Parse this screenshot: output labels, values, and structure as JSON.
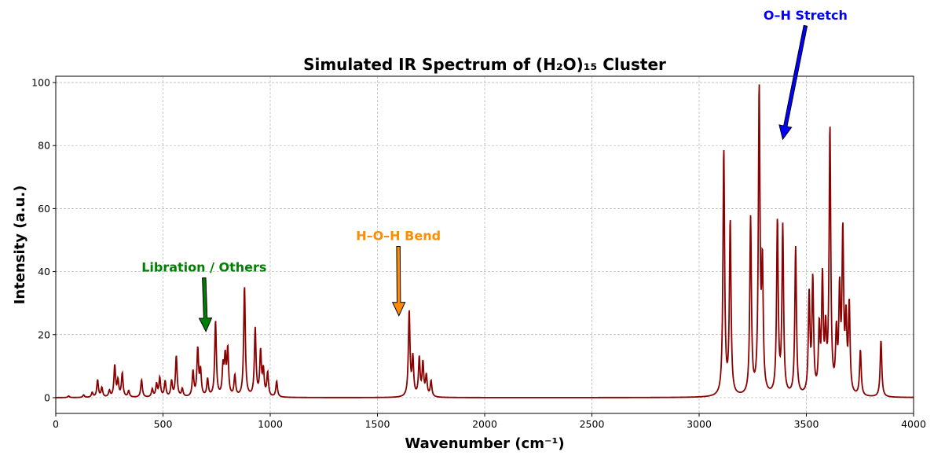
{
  "chart_data": {
    "type": "line",
    "title": "Simulated IR Spectrum of (H₂O)₁₅ Cluster",
    "xlabel": "Wavenumber (cm⁻¹)",
    "ylabel": "Intensity (a.u.)",
    "xlim": [
      0,
      4000
    ],
    "ylim": [
      -5,
      102
    ],
    "xticks": [
      0,
      500,
      1000,
      1500,
      2000,
      2500,
      3000,
      3500,
      4000
    ],
    "yticks": [
      0,
      20,
      40,
      60,
      80,
      100
    ],
    "grid": true,
    "line_color": "#8b0000",
    "baseline": 0,
    "peaks": [
      {
        "x": 60,
        "y": 0.5
      },
      {
        "x": 130,
        "y": 0.8
      },
      {
        "x": 170,
        "y": 1.5
      },
      {
        "x": 195,
        "y": 5.5
      },
      {
        "x": 215,
        "y": 3.0
      },
      {
        "x": 250,
        "y": 2.0
      },
      {
        "x": 275,
        "y": 10.0
      },
      {
        "x": 290,
        "y": 5.0
      },
      {
        "x": 310,
        "y": 7.5
      },
      {
        "x": 340,
        "y": 2.0
      },
      {
        "x": 400,
        "y": 5.5
      },
      {
        "x": 450,
        "y": 2.5
      },
      {
        "x": 470,
        "y": 4.0
      },
      {
        "x": 485,
        "y": 6.0
      },
      {
        "x": 510,
        "y": 5.0
      },
      {
        "x": 540,
        "y": 5.0
      },
      {
        "x": 562,
        "y": 13.0
      },
      {
        "x": 590,
        "y": 2.5
      },
      {
        "x": 640,
        "y": 8.0
      },
      {
        "x": 662,
        "y": 15.0
      },
      {
        "x": 675,
        "y": 8.0
      },
      {
        "x": 708,
        "y": 5.5
      },
      {
        "x": 745,
        "y": 24.0
      },
      {
        "x": 780,
        "y": 9.0
      },
      {
        "x": 790,
        "y": 11.5
      },
      {
        "x": 802,
        "y": 14.5
      },
      {
        "x": 835,
        "y": 6.5
      },
      {
        "x": 880,
        "y": 35.0
      },
      {
        "x": 930,
        "y": 21.5
      },
      {
        "x": 955,
        "y": 14.0
      },
      {
        "x": 968,
        "y": 8.0
      },
      {
        "x": 988,
        "y": 7.5
      },
      {
        "x": 1030,
        "y": 5.0
      },
      {
        "x": 1648,
        "y": 27.0
      },
      {
        "x": 1665,
        "y": 12.0
      },
      {
        "x": 1695,
        "y": 12.0
      },
      {
        "x": 1712,
        "y": 10.5
      },
      {
        "x": 1728,
        "y": 6.5
      },
      {
        "x": 1750,
        "y": 5.0
      },
      {
        "x": 3115,
        "y": 78.0
      },
      {
        "x": 3145,
        "y": 55.0
      },
      {
        "x": 3240,
        "y": 56.0
      },
      {
        "x": 3280,
        "y": 96.0
      },
      {
        "x": 3295,
        "y": 39.0
      },
      {
        "x": 3365,
        "y": 55.0
      },
      {
        "x": 3390,
        "y": 53.0
      },
      {
        "x": 3450,
        "y": 47.0
      },
      {
        "x": 3513,
        "y": 31.0
      },
      {
        "x": 3530,
        "y": 36.0
      },
      {
        "x": 3560,
        "y": 20.0
      },
      {
        "x": 3575,
        "y": 36.0
      },
      {
        "x": 3590,
        "y": 18.0
      },
      {
        "x": 3610,
        "y": 84.0
      },
      {
        "x": 3640,
        "y": 18.0
      },
      {
        "x": 3655,
        "y": 31.0
      },
      {
        "x": 3670,
        "y": 50.0
      },
      {
        "x": 3685,
        "y": 22.0
      },
      {
        "x": 3700,
        "y": 28.0
      },
      {
        "x": 3752,
        "y": 14.5
      },
      {
        "x": 3848,
        "y": 18.0
      }
    ],
    "annotations": [
      {
        "label": "Libration / Others",
        "color": "#008000",
        "text_x": 400,
        "text_y": 40,
        "arrow_x": 700,
        "arrow_y": 21
      },
      {
        "label": "H–O–H Bend",
        "color": "#ff8c00",
        "text_x": 1400,
        "text_y": 50,
        "arrow_x": 1600,
        "arrow_y": 26
      },
      {
        "label": "O–H Stretch",
        "color": "#0000ff",
        "text_x": 3300,
        "text_y": 120,
        "arrow_x": 3390,
        "arrow_y": 82
      }
    ]
  }
}
